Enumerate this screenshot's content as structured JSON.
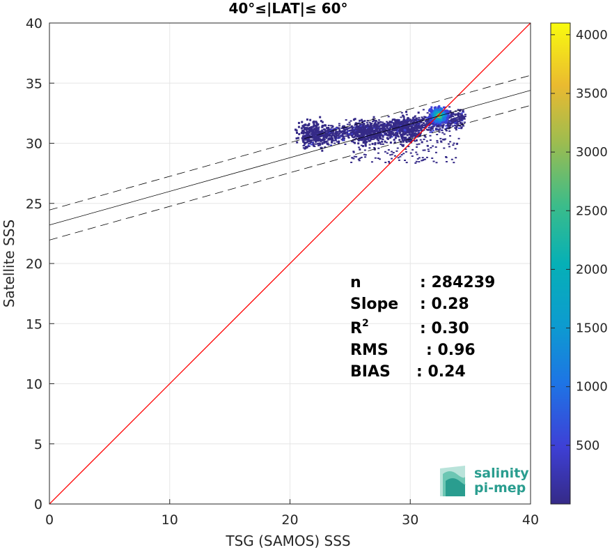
{
  "chart_data": {
    "type": "heatmap",
    "title": "40°≤|LAT|≤ 60°",
    "xlabel": "TSG (SAMOS) SSS",
    "ylabel": "Satellite SSS",
    "xlim": [
      0,
      40
    ],
    "ylim": [
      0,
      40
    ],
    "x_ticks": [
      "0",
      "10",
      "20",
      "30",
      "40"
    ],
    "y_ticks": [
      "0",
      "5",
      "10",
      "15",
      "20",
      "25",
      "30",
      "35",
      "40"
    ],
    "grid": true,
    "identity_line": {
      "from": [
        0,
        0
      ],
      "to": [
        40,
        40
      ],
      "color": "#ff0000"
    },
    "regression": {
      "intercept": 23.2,
      "slope": 0.28,
      "band_halfwidth": 1.25
    },
    "density_clusters": [
      {
        "x": 32.3,
        "y": 32.4,
        "peak_count": 4100
      },
      {
        "x": 29.5,
        "y": 31.2,
        "peak_count": 600
      },
      {
        "x": 26.5,
        "y": 31.0,
        "peak_count": 120
      },
      {
        "x": 22.0,
        "y": 31.0,
        "peak_count": 40
      }
    ],
    "stats": [
      {
        "label": "n",
        "value": ": 284239"
      },
      {
        "label": "Slope",
        "value": ": 0.28"
      },
      {
        "label": "R",
        "sup": "2",
        "value": ": 0.30"
      },
      {
        "label": "RMS",
        "value": ": 0.96"
      },
      {
        "label": "BIAS",
        "value": ": 0.24"
      }
    ],
    "colorbar": {
      "min": 0,
      "max": 4100,
      "ticks": [
        "500",
        "1000",
        "1500",
        "2000",
        "2500",
        "3000",
        "3500",
        "4000"
      ],
      "colormap": "parula"
    }
  },
  "logo": {
    "line1": "salinity",
    "line2": "pi-mep",
    "color": "#2a9d8f"
  }
}
